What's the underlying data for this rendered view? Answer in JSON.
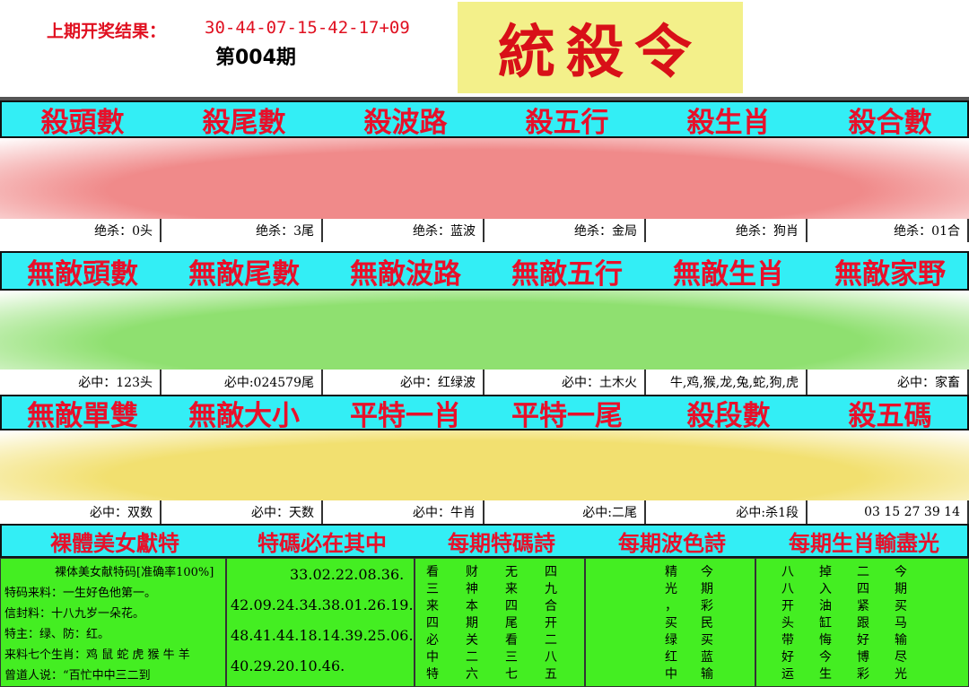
{
  "header": {
    "last_result_label": "上期开奖结果：",
    "last_result": "30-44-07-15-42-17+09",
    "issue": "第004期",
    "logo": "統殺令"
  },
  "sections": [
    {
      "headers": [
        "殺頭數",
        "殺尾數",
        "殺波路",
        "殺五行",
        "殺生肖",
        "殺合數"
      ],
      "labels": [
        "绝杀：0头",
        "绝杀：3尾",
        "绝杀：蓝波",
        "绝杀：金局",
        "绝杀：狗肖",
        "绝杀：01合"
      ]
    },
    {
      "headers": [
        "無敵頭數",
        "無敵尾數",
        "無敵波路",
        "無敵五行",
        "無敵生肖",
        "無敵家野"
      ],
      "labels": [
        "必中：123头",
        "必中:024579尾",
        "必中：红绿波",
        "必中：土木火",
        "牛,鸡,猴,龙,兔,蛇,狗,虎",
        "必中：家畜"
      ]
    },
    {
      "headers": [
        "無敵單雙",
        "無敵大小",
        "平特一肖",
        "平特一尾",
        "殺段數",
        "殺五碼"
      ],
      "labels": [
        "必中：双数",
        "必中：天数",
        "必中：牛肖",
        "必中:二尾",
        "必中:杀1段",
        "03  15  27  39  14"
      ]
    }
  ],
  "bottom": {
    "headers": [
      "裸體美女獻特",
      "特碼必在其中",
      "每期特碼詩",
      "每期波色詩",
      "每期生肖輸盡光"
    ],
    "tips": [
      "裸体美女献特码[准确率100%]",
      "特码来料：一生好色他第一。",
      "信封料：十八九岁一朵花。",
      "特主：绿、防：红。",
      "来料七个生肖：鸡 鼠 蛇 虎 猴 牛 羊",
      "曾道人说：“百忙中中三二到"
    ],
    "numbers": [
      "33.02.22.08.36.",
      "42.09.24.34.38.01.26.19.",
      "48.41.44.18.14.39.25.06.",
      "40.29.20.10.46."
    ],
    "poem": [
      [
        "看",
        "财",
        "无",
        "四"
      ],
      [
        "三",
        "神",
        "来",
        "九"
      ],
      [
        "来",
        "本",
        "四",
        "合"
      ],
      [
        "四",
        "期",
        "尾",
        "开"
      ],
      [
        "必",
        "关",
        "看",
        "二"
      ],
      [
        "中",
        "二",
        "三",
        "八"
      ],
      [
        "特",
        "六",
        "七",
        "五"
      ]
    ],
    "color_poem": [
      [
        "精",
        "今"
      ],
      [
        "光",
        "期"
      ],
      [
        "，",
        "彩"
      ],
      [
        "买",
        "民"
      ],
      [
        "绿",
        "买"
      ],
      [
        "红",
        "蓝"
      ],
      [
        "中",
        "输"
      ]
    ],
    "zodiac_poem": [
      [
        "八",
        "掉",
        "二",
        "今"
      ],
      [
        "八",
        "入",
        "四",
        "期"
      ],
      [
        "开",
        "油",
        "紧",
        "买"
      ],
      [
        "头",
        "缸",
        "跟",
        "马"
      ],
      [
        "带",
        "悔",
        "好",
        "输"
      ],
      [
        "好",
        "今",
        "博",
        "尽"
      ],
      [
        "运",
        "生",
        "彩",
        "光"
      ]
    ]
  }
}
